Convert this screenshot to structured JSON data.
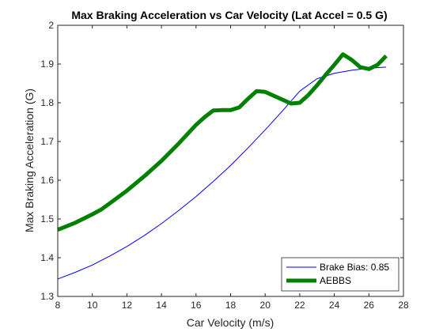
{
  "chart_data": {
    "type": "line",
    "title": "Max Braking Acceleration vs Car Velocity (Lat Accel = 0.5 G)",
    "xlabel": "Car Velocity (m/s)",
    "ylabel": "Max Braking Acceleration (G)",
    "xlim": [
      8,
      28
    ],
    "ylim": [
      1.3,
      2.0
    ],
    "xticks": [
      8,
      10,
      12,
      14,
      16,
      18,
      20,
      22,
      24,
      26,
      28
    ],
    "yticks": [
      1.3,
      1.4,
      1.5,
      1.6,
      1.7,
      1.8,
      1.9,
      2.0
    ],
    "xtick_labels": [
      "8",
      "10",
      "12",
      "14",
      "16",
      "18",
      "20",
      "22",
      "24",
      "26",
      "28"
    ],
    "ytick_labels": [
      "1.3",
      "1.4",
      "1.5",
      "1.6",
      "1.7",
      "1.8",
      "1.9",
      "2"
    ],
    "grid": false,
    "legend_position": "bottom-right",
    "series": [
      {
        "name": "Brake Bias: 0.85",
        "color": "#0000ff",
        "line_width": "thin",
        "x": [
          8,
          9,
          10,
          11,
          12,
          13,
          14,
          15,
          16,
          17,
          18,
          19,
          20,
          21,
          22,
          23,
          24,
          25,
          26,
          27
        ],
        "y": [
          1.345,
          1.362,
          1.381,
          1.404,
          1.429,
          1.457,
          1.488,
          1.522,
          1.558,
          1.597,
          1.638,
          1.683,
          1.73,
          1.779,
          1.83,
          1.862,
          1.876,
          1.884,
          1.889,
          1.892
        ]
      },
      {
        "name": "AEBBS",
        "color": "#008000",
        "line_width": "thick",
        "x": [
          8,
          8.5,
          9,
          9.5,
          10,
          10.5,
          11,
          12,
          13,
          14,
          15,
          16,
          16.5,
          17,
          17.5,
          18,
          18.5,
          19,
          19.5,
          20,
          20.5,
          21,
          21.5,
          22,
          22.5,
          23,
          23.5,
          24,
          24.5,
          25,
          25.5,
          26,
          26.5,
          27
        ],
        "y": [
          1.472,
          1.481,
          1.49,
          1.501,
          1.512,
          1.524,
          1.54,
          1.573,
          1.61,
          1.65,
          1.695,
          1.743,
          1.763,
          1.78,
          1.781,
          1.781,
          1.788,
          1.81,
          1.83,
          1.828,
          1.818,
          1.808,
          1.798,
          1.8,
          1.82,
          1.845,
          1.872,
          1.898,
          1.925,
          1.911,
          1.892,
          1.887,
          1.898,
          1.921
        ]
      }
    ]
  }
}
